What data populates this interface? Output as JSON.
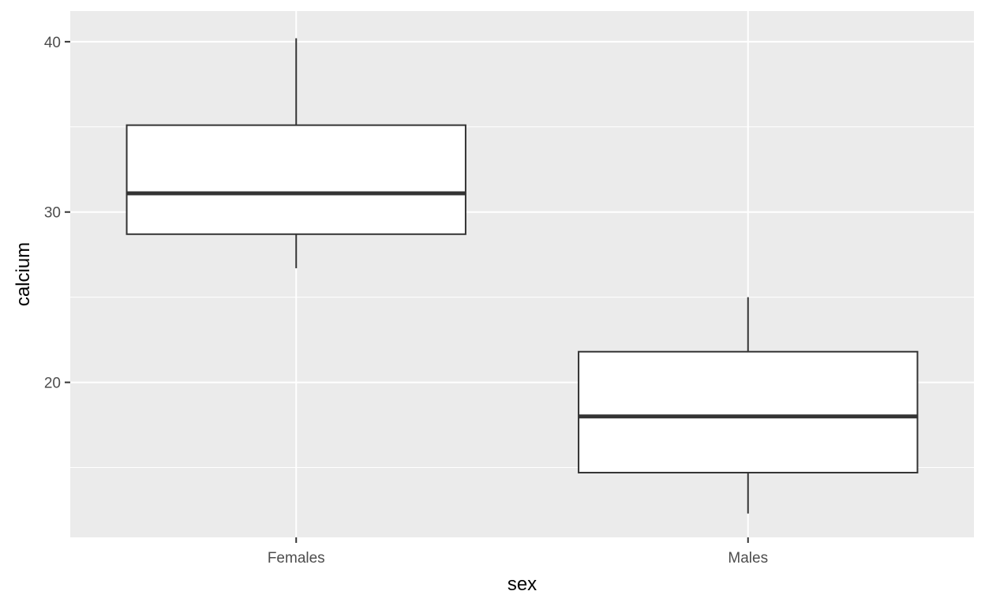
{
  "chart_data": {
    "type": "boxplot",
    "xlabel": "sex",
    "ylabel": "calcium",
    "categories": [
      "Females",
      "Males"
    ],
    "boxes": [
      {
        "category": "Females",
        "min": 26.7,
        "q1": 28.7,
        "median": 31.1,
        "q3": 35.1,
        "max": 40.2
      },
      {
        "category": "Males",
        "min": 12.3,
        "q1": 14.7,
        "median": 18.0,
        "q3": 21.8,
        "max": 25.0
      }
    ],
    "ylim": [
      10.9,
      41.8
    ],
    "yticks": [
      20,
      30,
      40
    ],
    "yticks_minor": [
      15,
      25,
      35
    ],
    "grid": true,
    "legend": "none",
    "colors": {
      "panel_background": "#ebebeb",
      "grid": "#ffffff",
      "box_fill": "#ffffff",
      "box_line": "#333333",
      "tick_label": "#4d4d4d",
      "axis_title": "#000000"
    }
  }
}
